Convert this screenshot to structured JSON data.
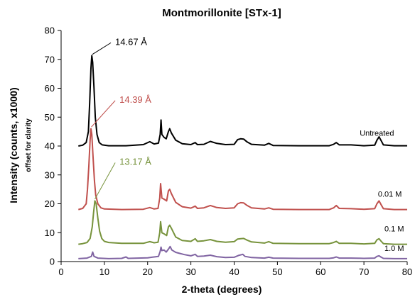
{
  "chart_data": {
    "type": "line",
    "title": "Montmorillonite [STx-1]",
    "xlabel": "2-theta (degrees)",
    "ylabel": "Intensity (counts, x1000)",
    "ylabel_sub": "offset for clarity",
    "xlim": [
      0,
      80
    ],
    "ylim": [
      0,
      80
    ],
    "xticks": [
      0,
      10,
      20,
      30,
      40,
      50,
      60,
      70,
      80
    ],
    "yticks": [
      0,
      10,
      20,
      30,
      40,
      50,
      60,
      70,
      80
    ],
    "grid": false,
    "series": [
      {
        "name": "Untreated",
        "color": "#000000",
        "points": [
          [
            4,
            40
          ],
          [
            5,
            40.3
          ],
          [
            5.8,
            41.2
          ],
          [
            6.3,
            45
          ],
          [
            6.6,
            55
          ],
          [
            6.9,
            67
          ],
          [
            7.1,
            71.3
          ],
          [
            7.3,
            69
          ],
          [
            7.6,
            60
          ],
          [
            7.9,
            50
          ],
          [
            8.3,
            44
          ],
          [
            8.8,
            41.2
          ],
          [
            9.5,
            40.4
          ],
          [
            11,
            40.1
          ],
          [
            15,
            40.1
          ],
          [
            19,
            40.5
          ],
          [
            20.5,
            41.5
          ],
          [
            21.5,
            40.7
          ],
          [
            22.5,
            41
          ],
          [
            22.9,
            44
          ],
          [
            23.1,
            49
          ],
          [
            23.3,
            44
          ],
          [
            23.8,
            43
          ],
          [
            24.3,
            42.5
          ],
          [
            24.8,
            45
          ],
          [
            25.1,
            46
          ],
          [
            25.5,
            44.5
          ],
          [
            26.5,
            42
          ],
          [
            28,
            40.8
          ],
          [
            30,
            40.5
          ],
          [
            31,
            41.2
          ],
          [
            31.5,
            40.5
          ],
          [
            33,
            40.6
          ],
          [
            34.5,
            41.6
          ],
          [
            36,
            40.9
          ],
          [
            38,
            40.5
          ],
          [
            40,
            40.6
          ],
          [
            40.8,
            42.2
          ],
          [
            41.5,
            42.5
          ],
          [
            42.2,
            42.4
          ],
          [
            43,
            41.4
          ],
          [
            44,
            40.6
          ],
          [
            47,
            40.3
          ],
          [
            48,
            40.9
          ],
          [
            49,
            40.2
          ],
          [
            55,
            40.1
          ],
          [
            62,
            40.1
          ],
          [
            63,
            40.6
          ],
          [
            63.6,
            41.2
          ],
          [
            64.3,
            40.4
          ],
          [
            67,
            40.4
          ],
          [
            70,
            40.1
          ],
          [
            72.5,
            40.3
          ],
          [
            73,
            42
          ],
          [
            73.5,
            43.2
          ],
          [
            74,
            41.8
          ],
          [
            74.5,
            40.4
          ],
          [
            77,
            40.1
          ],
          [
            80,
            40.1
          ]
        ]
      },
      {
        "name": "0.01 M",
        "color": "#c0504d",
        "points": [
          [
            4,
            18
          ],
          [
            5,
            18.4
          ],
          [
            5.8,
            20
          ],
          [
            6.1,
            25
          ],
          [
            6.4,
            33
          ],
          [
            6.7,
            42
          ],
          [
            6.9,
            46
          ],
          [
            7.1,
            44
          ],
          [
            7.4,
            36
          ],
          [
            7.7,
            28
          ],
          [
            8,
            23
          ],
          [
            8.5,
            20
          ],
          [
            9.2,
            18.6
          ],
          [
            10,
            18.2
          ],
          [
            14,
            18
          ],
          [
            19,
            18.1
          ],
          [
            20.5,
            18.7
          ],
          [
            21.5,
            18.2
          ],
          [
            22.4,
            18.4
          ],
          [
            22.8,
            22
          ],
          [
            23,
            27
          ],
          [
            23.3,
            22
          ],
          [
            23.8,
            21.6
          ],
          [
            24.4,
            21
          ],
          [
            24.8,
            24.5
          ],
          [
            25.1,
            25
          ],
          [
            25.5,
            23.5
          ],
          [
            26.5,
            20.5
          ],
          [
            28,
            19
          ],
          [
            30,
            18.5
          ],
          [
            31,
            19.2
          ],
          [
            31.5,
            18.4
          ],
          [
            33,
            18.6
          ],
          [
            34.5,
            19.4
          ],
          [
            36,
            18.7
          ],
          [
            38,
            18.4
          ],
          [
            40,
            18.6
          ],
          [
            40.8,
            20
          ],
          [
            41.5,
            20.4
          ],
          [
            42.2,
            20.3
          ],
          [
            43,
            19.4
          ],
          [
            44,
            18.6
          ],
          [
            47,
            18.2
          ],
          [
            48,
            18.6
          ],
          [
            49,
            18.1
          ],
          [
            55,
            18
          ],
          [
            62,
            18
          ],
          [
            63,
            18.6
          ],
          [
            63.6,
            19.4
          ],
          [
            64.3,
            18.4
          ],
          [
            67,
            18.3
          ],
          [
            70,
            18.1
          ],
          [
            72.5,
            18.3
          ],
          [
            73,
            20
          ],
          [
            73.5,
            21
          ],
          [
            74,
            19.6
          ],
          [
            74.5,
            18.3
          ],
          [
            77,
            18
          ],
          [
            80,
            18
          ]
        ]
      },
      {
        "name": "0.1 M",
        "color": "#77933c",
        "points": [
          [
            4,
            6
          ],
          [
            5,
            6.2
          ],
          [
            6,
            6.6
          ],
          [
            6.7,
            8
          ],
          [
            7.2,
            12
          ],
          [
            7.5,
            17
          ],
          [
            7.8,
            21
          ],
          [
            8.1,
            20
          ],
          [
            8.5,
            15
          ],
          [
            8.9,
            10.5
          ],
          [
            9.4,
            8
          ],
          [
            10,
            7
          ],
          [
            11,
            6.6
          ],
          [
            14,
            6.3
          ],
          [
            19,
            6.3
          ],
          [
            20.5,
            6.9
          ],
          [
            21.5,
            6.5
          ],
          [
            22.4,
            6.7
          ],
          [
            22.8,
            10
          ],
          [
            23,
            13.8
          ],
          [
            23.3,
            10
          ],
          [
            23.8,
            9.6
          ],
          [
            24.4,
            9
          ],
          [
            24.8,
            12
          ],
          [
            25.1,
            12.6
          ],
          [
            25.5,
            11.5
          ],
          [
            26.5,
            8.5
          ],
          [
            28,
            7.3
          ],
          [
            30,
            7
          ],
          [
            31,
            7.9
          ],
          [
            31.5,
            7
          ],
          [
            33,
            7.2
          ],
          [
            34.5,
            7.6
          ],
          [
            36,
            7
          ],
          [
            38,
            6.7
          ],
          [
            40,
            6.9
          ],
          [
            40.8,
            7.8
          ],
          [
            41.5,
            7.9
          ],
          [
            42.2,
            8
          ],
          [
            43,
            7.4
          ],
          [
            44,
            6.8
          ],
          [
            47,
            6.4
          ],
          [
            48,
            6.9
          ],
          [
            49,
            6.3
          ],
          [
            55,
            6.2
          ],
          [
            62,
            6.2
          ],
          [
            63,
            6.6
          ],
          [
            63.6,
            7
          ],
          [
            64.3,
            6.3
          ],
          [
            67,
            6.3
          ],
          [
            70,
            6.1
          ],
          [
            72.5,
            6.3
          ],
          [
            73,
            7.5
          ],
          [
            73.5,
            7.9
          ],
          [
            74,
            7
          ],
          [
            74.5,
            6.2
          ],
          [
            77,
            6
          ],
          [
            80,
            6
          ]
        ]
      },
      {
        "name": "1.0 M",
        "color": "#8064a2",
        "points": [
          [
            4,
            1
          ],
          [
            6,
            1.2
          ],
          [
            7,
            1.8
          ],
          [
            7.3,
            3.3
          ],
          [
            7.6,
            1.8
          ],
          [
            8.5,
            1.2
          ],
          [
            11,
            1
          ],
          [
            14,
            1.1
          ],
          [
            15,
            1.6
          ],
          [
            15.5,
            1.1
          ],
          [
            20,
            1.3
          ],
          [
            21,
            1.5
          ],
          [
            22.5,
            1.8
          ],
          [
            22.9,
            3.5
          ],
          [
            23.1,
            5
          ],
          [
            23.3,
            3.8
          ],
          [
            23.8,
            4
          ],
          [
            24.3,
            3.3
          ],
          [
            24.8,
            4.3
          ],
          [
            25.2,
            5.2
          ],
          [
            25.6,
            4
          ],
          [
            26.5,
            3.2
          ],
          [
            27.5,
            2.8
          ],
          [
            28.5,
            2.4
          ],
          [
            30,
            2
          ],
          [
            31,
            2.5
          ],
          [
            31.5,
            1.8
          ],
          [
            33,
            1.9
          ],
          [
            34.5,
            2.2
          ],
          [
            36,
            1.7
          ],
          [
            38,
            1.4
          ],
          [
            40,
            1.5
          ],
          [
            41,
            2.1
          ],
          [
            42,
            2.5
          ],
          [
            42.5,
            1.8
          ],
          [
            44,
            1.4
          ],
          [
            47,
            1.2
          ],
          [
            48,
            1.5
          ],
          [
            49,
            1.2
          ],
          [
            55,
            1.1
          ],
          [
            62,
            1.1
          ],
          [
            63,
            1.3
          ],
          [
            63.6,
            1.6
          ],
          [
            64.3,
            1.2
          ],
          [
            67,
            1.2
          ],
          [
            70,
            1.1
          ],
          [
            72.5,
            1.2
          ],
          [
            73,
            1.8
          ],
          [
            73.5,
            2
          ],
          [
            74,
            1.5
          ],
          [
            74.5,
            1.1
          ],
          [
            77,
            1
          ],
          [
            80,
            1
          ]
        ]
      }
    ],
    "series_labels": [
      {
        "text": "Untreated",
        "x": 73,
        "y": 43.6
      },
      {
        "text": "0.01 M",
        "x": 76,
        "y": 22.4
      },
      {
        "text": "0.1 M",
        "x": 77,
        "y": 10.4
      },
      {
        "text": "1.0 M",
        "x": 77,
        "y": 3.7
      }
    ],
    "annotations": [
      {
        "text": "14.67 Å",
        "color": "#000000",
        "x": 12,
        "y": 75,
        "arrow_to": [
          7.2,
          71.7
        ]
      },
      {
        "text": "14.39 Å",
        "color": "#c0504d",
        "x": 13,
        "y": 55,
        "arrow_to": [
          7,
          46.6
        ]
      },
      {
        "text": "13.17 Å",
        "color": "#77933c",
        "x": 13,
        "y": 33.5,
        "arrow_to": [
          7.8,
          21.6
        ]
      }
    ]
  }
}
